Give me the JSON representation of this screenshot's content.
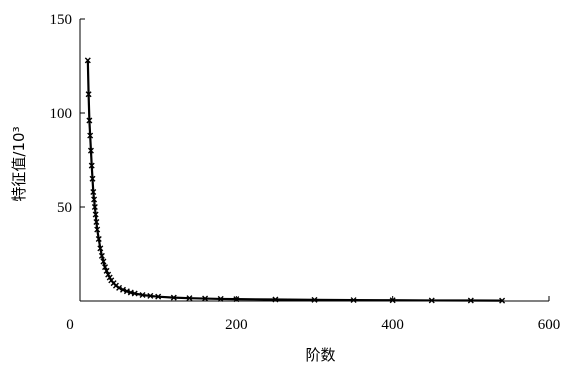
{
  "chart_data": {
    "type": "line",
    "xlabel": "阶数",
    "ylabel": "特征值/10³",
    "xlim": [
      0,
      600
    ],
    "ylim": [
      0,
      150
    ],
    "x_ticks": [
      "0",
      "200",
      "400",
      "600"
    ],
    "y_ticks": [
      "50",
      "100",
      "150"
    ],
    "grid": false,
    "marker": "x",
    "series": [
      {
        "x": [
          10,
          11,
          12,
          13,
          14,
          15,
          16,
          17,
          18,
          19,
          20,
          21,
          22,
          24,
          26,
          28,
          30,
          32,
          34,
          36,
          38,
          40,
          43,
          46,
          50,
          55,
          60,
          65,
          70,
          80,
          90,
          100,
          120,
          140,
          160,
          180,
          200,
          250,
          300,
          350,
          400,
          450,
          500,
          540
        ],
        "y": [
          128,
          110,
          96,
          88,
          80,
          72,
          65,
          58,
          54,
          50,
          46,
          42,
          38,
          33,
          28,
          24,
          21,
          18,
          16,
          14,
          12.5,
          11,
          9.5,
          8.2,
          7,
          6,
          5.2,
          4.5,
          4,
          3.2,
          2.7,
          2.3,
          1.8,
          1.5,
          1.3,
          1.1,
          1.0,
          0.8,
          0.6,
          0.5,
          0.4,
          0.3,
          0.25,
          0.2
        ]
      }
    ],
    "line_color": "#000000"
  }
}
